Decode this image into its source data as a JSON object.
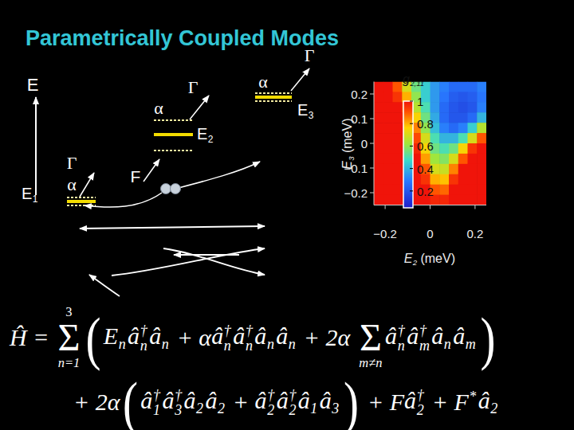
{
  "title": "Parametrically Coupled Modes",
  "diagram": {
    "energy_axis": "E",
    "drive": "F",
    "levels": [
      {
        "label": {
          "b": "E",
          "s": "1"
        },
        "gamma": "Γ",
        "alpha": "α"
      },
      {
        "label": {
          "b": "E",
          "s": "2"
        },
        "gamma": "Γ",
        "alpha": "α"
      },
      {
        "label": {
          "b": "E",
          "s": "3"
        },
        "gamma": "Γ",
        "alpha": "α"
      }
    ]
  },
  "equation": {
    "lines": [
      [
        "Ĥ = ",
        {
          "sum": "Σ",
          "over": "3",
          "under": "n=1"
        },
        {
          "big": "("
        },
        {
          "b": "E",
          "s": "n"
        },
        {
          "b": "â",
          "p": "†",
          "s": "n"
        },
        {
          "b": "â",
          "s": "n"
        },
        " + α",
        {
          "b": "â",
          "p": "†",
          "s": "n"
        },
        {
          "b": "â",
          "p": "†",
          "s": "n"
        },
        {
          "b": "â",
          "s": "n"
        },
        {
          "b": "â",
          "s": "n"
        },
        " + 2α ",
        {
          "sum": "Σ",
          "under": "m≠n"
        },
        {
          "b": "â",
          "p": "†",
          "s": "n"
        },
        {
          "b": "â",
          "p": "†",
          "s": "m"
        },
        {
          "b": "â",
          "s": "n"
        },
        {
          "b": "â",
          "s": "m"
        },
        {
          "big": ")"
        }
      ],
      [
        "+ 2α",
        {
          "big": "("
        },
        {
          "b": "â",
          "p": "†",
          "s": "1"
        },
        {
          "b": "â",
          "p": "†",
          "s": "3"
        },
        {
          "b": "â",
          "s": "2"
        },
        {
          "b": "â",
          "s": "2"
        },
        " + ",
        {
          "b": "â",
          "p": "†",
          "s": "2"
        },
        {
          "b": "â",
          "p": "†",
          "s": "2"
        },
        {
          "b": "â",
          "s": "1"
        },
        {
          "b": "â",
          "s": "3"
        },
        {
          "big": ")"
        },
        " + F",
        {
          "b": "â",
          "p": "†",
          "s": "2"
        },
        " + ",
        {
          "b": "F",
          "p": "*"
        },
        {
          "b": "â",
          "s": "2"
        }
      ]
    ]
  },
  "chart_data": {
    "type": "heatmap",
    "colorbar_title": {
      "b": "g",
      "s": "2,11"
    },
    "x_label": {
      "b": "E",
      "s": "2",
      "rest": " (meV)"
    },
    "y_label": {
      "b": "E",
      "s": "3",
      "rest": " (meV)"
    },
    "xlim": [
      -0.25,
      0.25
    ],
    "ylim": [
      -0.25,
      0.25
    ],
    "xticks": [
      {
        "value": -0.2,
        "label": "−0.2"
      },
      0,
      0.2
    ],
    "yticks": [
      {
        "value": -0.2,
        "label": "−0.2"
      },
      {
        "value": -0.1,
        "label": "−0.1"
      },
      0,
      0.1,
      0.2
    ],
    "cells": [
      [
        1,
        1,
        0.9,
        0.7,
        0.55,
        0.45,
        0.35,
        0.3,
        0.25,
        0.25,
        0.25,
        0.3
      ],
      [
        1,
        1,
        0.95,
        0.8,
        0.6,
        0.45,
        0.35,
        0.28,
        0.22,
        0.2,
        0.22,
        0.28
      ],
      [
        1,
        1,
        1,
        0.9,
        0.65,
        0.5,
        0.35,
        0.25,
        0.2,
        0.18,
        0.2,
        0.3
      ],
      [
        1,
        1,
        1,
        0.95,
        0.75,
        0.55,
        0.38,
        0.25,
        0.2,
        0.2,
        0.25,
        0.4
      ],
      [
        1,
        1,
        1,
        1,
        0.85,
        0.6,
        0.42,
        0.3,
        0.25,
        0.3,
        0.45,
        0.65
      ],
      [
        1,
        1,
        1,
        1,
        0.92,
        0.7,
        0.5,
        0.4,
        0.4,
        0.5,
        0.7,
        0.9
      ],
      [
        1,
        1,
        1,
        1,
        0.97,
        0.75,
        0.55,
        0.5,
        0.55,
        0.75,
        0.95,
        1
      ],
      [
        1,
        1,
        1,
        1,
        1,
        0.82,
        0.62,
        0.58,
        0.7,
        0.9,
        1,
        1
      ],
      [
        1,
        1,
        1,
        1,
        1,
        0.9,
        0.7,
        0.68,
        0.85,
        1,
        1,
        1
      ],
      [
        1,
        1,
        1,
        1,
        1,
        0.95,
        0.8,
        0.78,
        0.95,
        1,
        1,
        1
      ],
      [
        1,
        1,
        1,
        1,
        1,
        1,
        0.9,
        0.88,
        1,
        1,
        1,
        1
      ],
      [
        1,
        1,
        1,
        1,
        1,
        1,
        0.97,
        0.97,
        1,
        1,
        1,
        1
      ]
    ],
    "color_range": [
      0.05,
      1
    ],
    "color_ticks": [
      1,
      0.8,
      0.6,
      0.4,
      0.2
    ]
  }
}
